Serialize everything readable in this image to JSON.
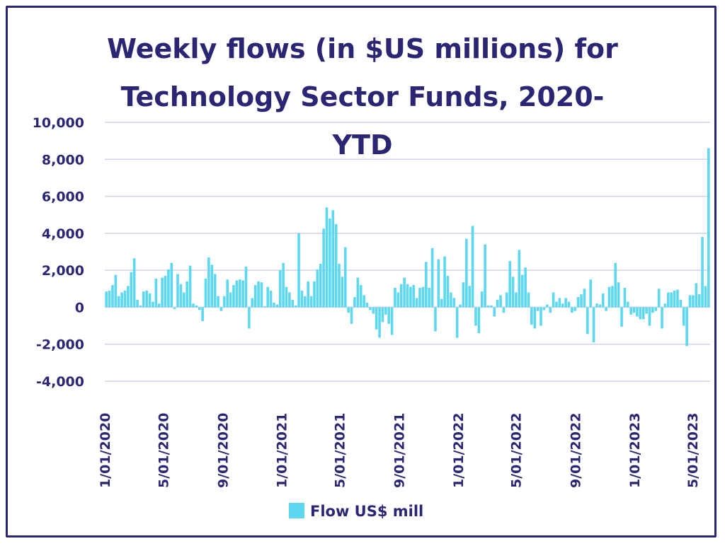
{
  "chart_data": {
    "type": "bar",
    "title": "Weekly flows (in $US millions) for Technology Sector Funds, 2020-YTD",
    "title_lines": [
      "Weekly flows (in $US millions) for",
      "Technology Sector Funds, 2020-",
      "YTD"
    ],
    "ylim": [
      -4000,
      10000
    ],
    "yticks": [
      10000,
      8000,
      6000,
      4000,
      2000,
      0,
      -2000,
      -4000
    ],
    "ytick_labels": [
      "10,000",
      "8,000",
      "6,000",
      "4,000",
      "2,000",
      "0",
      "-2,000",
      "-4,000"
    ],
    "xtick_labels": [
      "1/01/2020",
      "5/01/2020",
      "9/01/2020",
      "1/01/2021",
      "5/01/2021",
      "9/01/2021",
      "1/01/2022",
      "5/01/2022",
      "9/01/2022",
      "1/01/2023",
      "5/01/2023"
    ],
    "x_range": [
      "2020-01-01",
      "2023-06-07"
    ],
    "series": [
      {
        "name": "Flow US$ mill",
        "color": "#5ed8f0",
        "values": [
          850,
          900,
          1200,
          1750,
          600,
          800,
          900,
          1150,
          1900,
          2650,
          400,
          100,
          850,
          900,
          750,
          300,
          1550,
          200,
          1600,
          1700,
          2050,
          2400,
          -100,
          1800,
          1250,
          800,
          1400,
          2250,
          200,
          100,
          -150,
          -750,
          1550,
          2700,
          2300,
          1800,
          600,
          -200,
          600,
          1500,
          800,
          1200,
          1450,
          1500,
          1450,
          2200,
          -1150,
          500,
          1200,
          1400,
          1350,
          50,
          1100,
          900,
          250,
          150,
          2000,
          2400,
          1100,
          800,
          400,
          100,
          4000,
          900,
          600,
          1400,
          600,
          1400,
          2050,
          2350,
          4250,
          5400,
          4800,
          5250,
          4500,
          2350,
          1650,
          3250,
          -300,
          -900,
          550,
          1600,
          1200,
          650,
          250,
          -150,
          -350,
          -1200,
          -1650,
          -800,
          -400,
          -900,
          -1500,
          1050,
          800,
          1250,
          1600,
          1250,
          1100,
          1200,
          500,
          1050,
          1100,
          2450,
          1050,
          3200,
          -1300,
          2600,
          450,
          2750,
          1700,
          800,
          500,
          -1650,
          150,
          1350,
          3700,
          1150,
          4400,
          -1000,
          -1400,
          850,
          3400,
          100,
          100,
          -500,
          400,
          650,
          -300,
          800,
          2500,
          1650,
          800,
          3100,
          1750,
          2150,
          800,
          -950,
          -1150,
          -200,
          -1000,
          -150,
          150,
          -300,
          800,
          300,
          500,
          200,
          500,
          300,
          -300,
          -200,
          550,
          700,
          1000,
          -1450,
          1500,
          -1900,
          200,
          150,
          750,
          -200,
          1100,
          1150,
          2400,
          1350,
          -1050,
          1050,
          300,
          -400,
          -300,
          -500,
          -650,
          -650,
          -350,
          -1000,
          -300,
          -200,
          1000,
          -1150,
          200,
          800,
          800,
          900,
          950,
          400,
          -1000,
          -2100,
          650,
          650,
          1300,
          700,
          3800,
          1150,
          8600
        ]
      }
    ],
    "legend": {
      "position": "bottom",
      "label": "Flow US$ mill"
    },
    "grid": true
  }
}
